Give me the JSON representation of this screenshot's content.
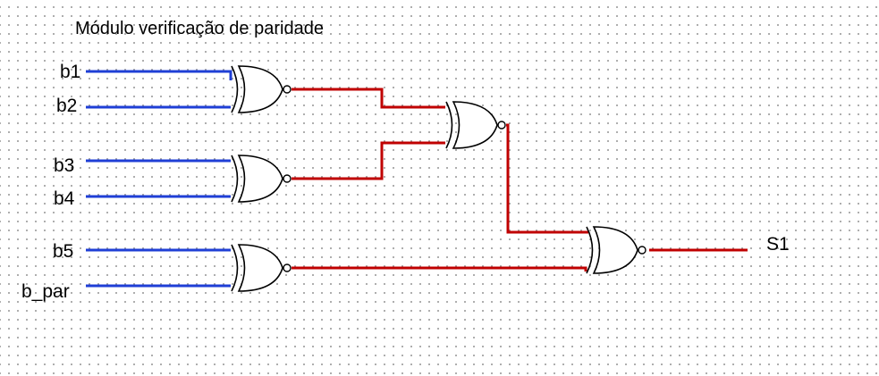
{
  "title": "Módulo verificação de paridade",
  "inputs": [
    "b1",
    "b2",
    "b3",
    "b4",
    "b5",
    "b_par"
  ],
  "output": "S1",
  "gate_type": "XNOR",
  "colors": {
    "input_wire": "#1f3fd6",
    "internal_wire": "#c00000",
    "gate_stroke": "#000000",
    "grid_dot": "#9a9a9a"
  }
}
